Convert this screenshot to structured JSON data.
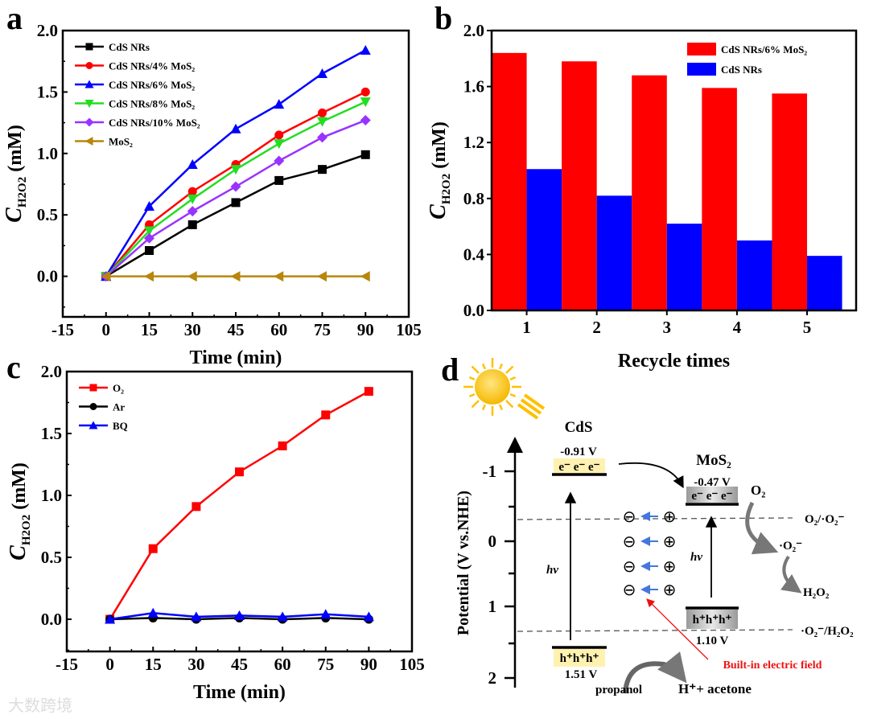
{
  "chart_data": [
    {
      "panel": "a",
      "type": "line",
      "xlabel": "Time (min)",
      "ylabel": {
        "main": "C",
        "sub": "H2O2",
        "unit": " (mM)"
      },
      "xlim": [
        -15,
        105
      ],
      "ylim": [
        -0.33,
        2.0
      ],
      "xticks": [
        -15,
        0,
        15,
        30,
        45,
        60,
        75,
        90,
        105
      ],
      "yticks": [
        0.0,
        0.5,
        1.0,
        1.5,
        2.0
      ],
      "ytick_labels": [
        "0.0",
        "0.5",
        "1.0",
        "1.5",
        "2.0"
      ],
      "legend_position": "top-left",
      "x": [
        0,
        15,
        30,
        45,
        60,
        75,
        90
      ],
      "series": [
        {
          "name": "CdS NRs",
          "color": "#000000",
          "marker": "square",
          "values": [
            0,
            0.21,
            0.42,
            0.6,
            0.78,
            0.87,
            0.99
          ]
        },
        {
          "name": "CdS NRs/4% MoS₂",
          "color": "#ff0000",
          "marker": "circle",
          "values": [
            0,
            0.42,
            0.69,
            0.91,
            1.15,
            1.33,
            1.5
          ]
        },
        {
          "name": "CdS NRs/6% MoS₂",
          "color": "#0000ff",
          "marker": "triangle-up",
          "values": [
            0,
            0.57,
            0.91,
            1.2,
            1.4,
            1.65,
            1.84
          ]
        },
        {
          "name": "CdS NRs/8% MoS₂",
          "color": "#22dd22",
          "marker": "triangle-down",
          "values": [
            0,
            0.37,
            0.63,
            0.87,
            1.08,
            1.26,
            1.42
          ]
        },
        {
          "name": "CdS NRs/10% MoS₂",
          "color": "#9933ff",
          "marker": "diamond",
          "values": [
            0,
            0.31,
            0.53,
            0.73,
            0.94,
            1.13,
            1.27
          ]
        },
        {
          "name": "MoS₂",
          "color": "#b8860b",
          "marker": "triangle-left",
          "values": [
            0,
            0,
            0,
            0,
            0,
            0,
            0
          ]
        }
      ]
    },
    {
      "panel": "b",
      "type": "bar",
      "xlabel": "Recycle times",
      "ylabel": {
        "main": "C",
        "sub": "H2O2",
        "unit": " (mM)"
      },
      "categories": [
        "1",
        "2",
        "3",
        "4",
        "5"
      ],
      "ylim": [
        0,
        2.0
      ],
      "yticks": [
        0.0,
        0.4,
        0.8,
        1.2,
        1.6,
        2.0
      ],
      "ytick_labels": [
        "0.0",
        "0.4",
        "0.8",
        "1.2",
        "1.6",
        "2.0"
      ],
      "legend_position": "top-right",
      "series": [
        {
          "name": "CdS NRs/6% MoS₂",
          "color": "#ff0000",
          "values": [
            1.84,
            1.78,
            1.68,
            1.59,
            1.55
          ]
        },
        {
          "name": "CdS NRs",
          "color": "#0000ff",
          "values": [
            1.01,
            0.82,
            0.62,
            0.5,
            0.39
          ]
        }
      ]
    },
    {
      "panel": "c",
      "type": "line",
      "xlabel": "Time (min)",
      "ylabel": {
        "main": "C",
        "sub": "H2O2",
        "unit": " (mM)"
      },
      "xlim": [
        -15,
        105
      ],
      "ylim": [
        -0.26,
        2.0
      ],
      "xticks": [
        -15,
        0,
        15,
        30,
        45,
        60,
        75,
        90,
        105
      ],
      "yticks": [
        0.0,
        0.5,
        1.0,
        1.5,
        2.0
      ],
      "ytick_labels": [
        "0.0",
        "0.5",
        "1.0",
        "1.5",
        "2.0"
      ],
      "legend_position": "top-left",
      "x": [
        0,
        15,
        30,
        45,
        60,
        75,
        90
      ],
      "series": [
        {
          "name": "O₂",
          "color": "#ff0000",
          "marker": "square",
          "values": [
            0,
            0.57,
            0.91,
            1.19,
            1.4,
            1.65,
            1.84
          ]
        },
        {
          "name": "Ar",
          "color": "#000000",
          "marker": "circle",
          "values": [
            0,
            0.01,
            0,
            0.01,
            0,
            0.01,
            0
          ]
        },
        {
          "name": "BQ",
          "color": "#0000ff",
          "marker": "triangle-up",
          "values": [
            0,
            0.05,
            0.02,
            0.03,
            0.02,
            0.04,
            0.02
          ]
        }
      ]
    }
  ],
  "diagram_d": {
    "panel": "d",
    "ylabel": "Potential (V vs.NHE)",
    "yticks": [
      "-1",
      "0",
      "1",
      "2"
    ],
    "cds_label": "CdS",
    "cds_cb": "-0.91 V",
    "cds_vb": "1.51 V",
    "mos2_label": "MoS₂",
    "mos2_cb": "-0.47 V",
    "mos2_vb": "1.10 V",
    "electrons": "e⁻  e⁻  e⁻",
    "holes": "h⁺h⁺h⁺",
    "hv": "hν",
    "o2": "O₂",
    "superoxide": "·O₂⁻",
    "h2o2": "H₂O₂",
    "couple1": "O₂/·O₂⁻",
    "couple2": "·O₂⁻/H₂O₂",
    "field": "Built-in electric field",
    "propanol": "propanol",
    "products": "H⁺+ acetone",
    "neg": "⊖",
    "pos": "⊕",
    "colors": {
      "band_yellow": "#fff2b0",
      "band_gray": "#bbbbbb",
      "field": "#ee1111",
      "field_arrow": "#4477dd",
      "sun": "#ffc000"
    }
  },
  "panel_labels": [
    "a",
    "b",
    "c",
    "d"
  ],
  "watermark": "大数跨境"
}
